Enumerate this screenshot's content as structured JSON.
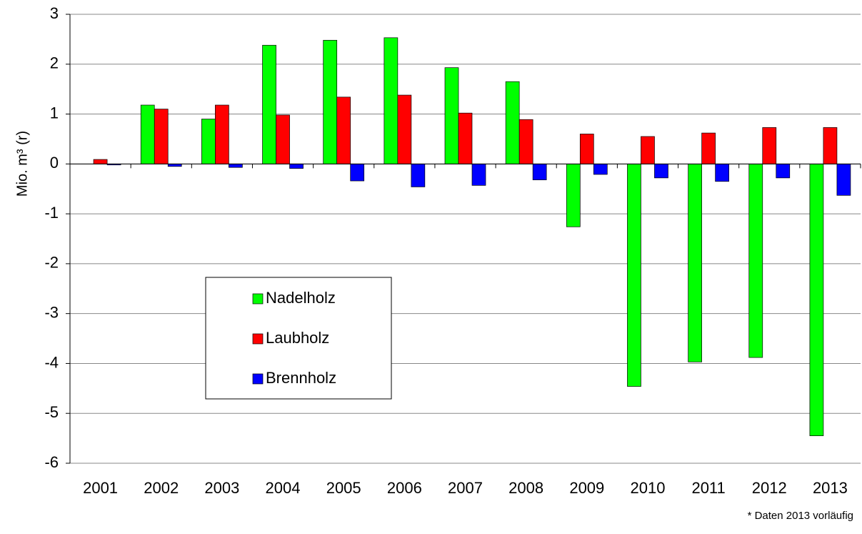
{
  "chart_data": {
    "type": "bar",
    "y_label": "Mio. m³ (r)",
    "annotation": "* Daten 2013 vorläufig",
    "categories": [
      "2001",
      "2002",
      "2003",
      "2004",
      "2005",
      "2006",
      "2007",
      "2008",
      "2009",
      "2010",
      "2011",
      "2012",
      "2013"
    ],
    "series": [
      {
        "name": "Nadelholz",
        "color": "#00ff00",
        "values": [
          null,
          1.18,
          0.9,
          2.38,
          2.48,
          2.53,
          1.93,
          1.65,
          -1.26,
          -4.46,
          -3.97,
          -3.88,
          -5.45
        ]
      },
      {
        "name": "Laubholz",
        "color": "#ff0000",
        "values": [
          0.09,
          1.1,
          1.18,
          0.98,
          1.34,
          1.38,
          1.02,
          0.89,
          0.6,
          0.55,
          0.62,
          0.73,
          0.73
        ]
      },
      {
        "name": "Brennholz",
        "color": "#0000ff",
        "values": [
          -0.02,
          -0.05,
          -0.07,
          -0.09,
          -0.34,
          -0.46,
          -0.43,
          -0.32,
          -0.21,
          -0.28,
          -0.35,
          -0.28,
          -0.63
        ]
      }
    ],
    "ylim": [
      -6,
      3
    ],
    "yticks": [
      -6,
      -5,
      -4,
      -3,
      -2,
      -1,
      0,
      1,
      2,
      3
    ],
    "grid": true,
    "legend": "lower-left"
  }
}
